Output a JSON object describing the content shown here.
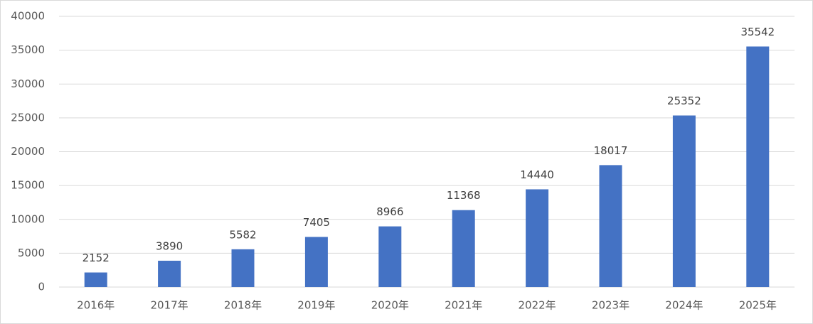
{
  "chart_data": {
    "type": "bar",
    "categories": [
      "2016年",
      "2017年",
      "2018年",
      "2019年",
      "2020年",
      "2021年",
      "2022年",
      "2023年",
      "2024年",
      "2025年"
    ],
    "values": [
      2152,
      3890,
      5582,
      7405,
      8966,
      11368,
      14440,
      18017,
      25352,
      35542
    ],
    "color": "#4472c4",
    "ylim": [
      0,
      40000
    ],
    "yticks": [
      0,
      5000,
      10000,
      15000,
      20000,
      25000,
      30000,
      35000,
      40000
    ],
    "grid": true,
    "data_labels": true
  }
}
